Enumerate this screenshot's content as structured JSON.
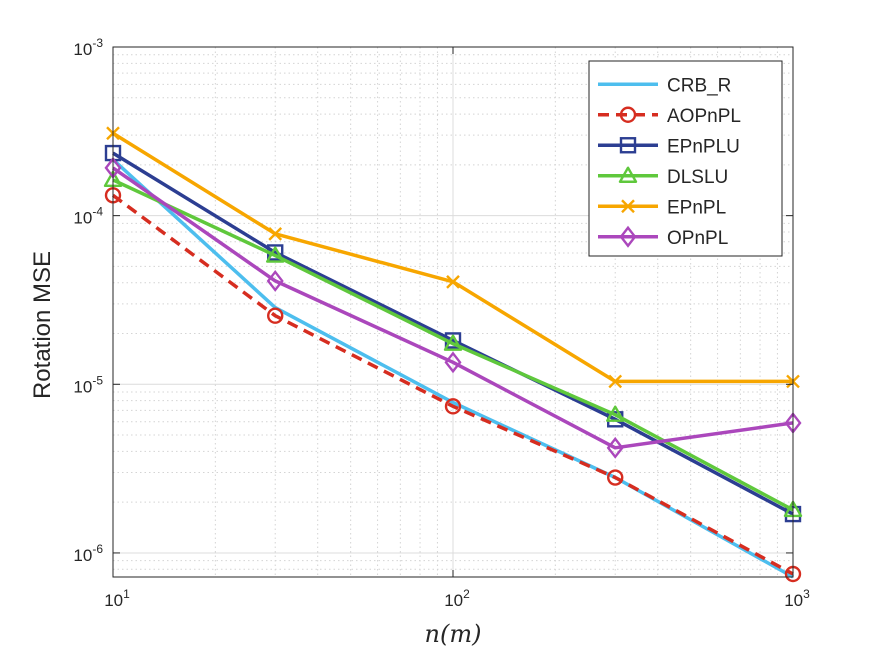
{
  "chart_data": {
    "type": "line",
    "xscale": "log",
    "yscale": "log",
    "xlim": [
      10,
      1000
    ],
    "ylim": [
      7.2e-07,
      0.001
    ],
    "x": [
      10,
      30,
      100,
      300,
      1000
    ],
    "xlabel_base": "n",
    "xlabel_paren": "(m)",
    "ylabel": "Rotation MSE",
    "grid": true,
    "minor_grid": true,
    "legend_position": "top-right",
    "x_ticks": [
      {
        "value": 10,
        "base": "10",
        "exp": "1"
      },
      {
        "value": 100,
        "base": "10",
        "exp": "2"
      },
      {
        "value": 1000,
        "base": "10",
        "exp": "3"
      }
    ],
    "y_ticks": [
      {
        "value": 1e-06,
        "base": "10",
        "exp": "-6"
      },
      {
        "value": 1e-05,
        "base": "10",
        "exp": "-5"
      },
      {
        "value": 0.0001,
        "base": "10",
        "exp": "-4"
      },
      {
        "value": 0.001,
        "base": "10",
        "exp": "-3"
      }
    ],
    "series": [
      {
        "name": "CRB_R",
        "color": "#4DBEEE",
        "dash": "solid",
        "marker": "none",
        "values": [
          0.000215,
          2.85e-05,
          7.8e-06,
          2.8e-06,
          7.2e-07
        ]
      },
      {
        "name": "AOPnPL",
        "color": "#D62D20",
        "dash": "dashed",
        "marker": "circle",
        "values": [
          0.000132,
          2.55e-05,
          7.4e-06,
          2.8e-06,
          7.5e-07
        ]
      },
      {
        "name": "EPnPLU",
        "color": "#2C3E92",
        "dash": "solid",
        "marker": "square",
        "values": [
          0.000235,
          6.05e-05,
          1.82e-05,
          6.2e-06,
          1.7e-06
        ]
      },
      {
        "name": "DLSLU",
        "color": "#5FC83C",
        "dash": "solid",
        "marker": "triangle",
        "values": [
          0.000163,
          5.8e-05,
          1.74e-05,
          6.6e-06,
          1.8e-06
        ]
      },
      {
        "name": "EPnPL",
        "color": "#F7A600",
        "dash": "solid",
        "marker": "x",
        "values": [
          0.000308,
          7.8e-05,
          4.05e-05,
          1.04e-05,
          1.04e-05
        ]
      },
      {
        "name": "OPnPL",
        "color": "#AB47BC",
        "dash": "solid",
        "marker": "diamond",
        "values": [
          0.000192,
          4.1e-05,
          1.35e-05,
          4.2e-06,
          5.9e-06
        ]
      }
    ]
  }
}
